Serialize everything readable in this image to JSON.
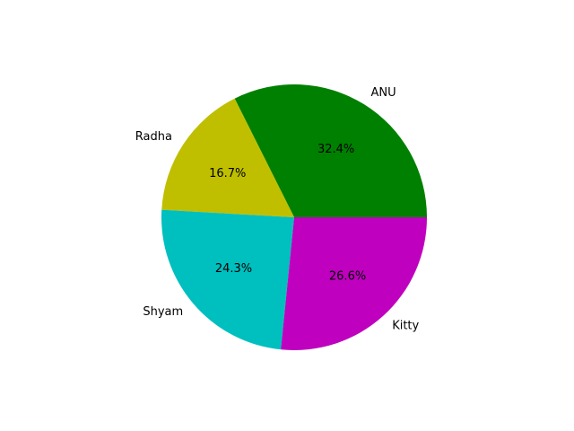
{
  "chart_data": {
    "type": "pie",
    "slices": [
      {
        "label": "ANU",
        "value": 32.4,
        "pct_text": "32.4%",
        "color": "#008000"
      },
      {
        "label": "Radha",
        "value": 16.7,
        "pct_text": "16.7%",
        "color": "#bfbf00"
      },
      {
        "label": "Shyam",
        "value": 24.3,
        "pct_text": "24.3%",
        "color": "#00bfbf"
      },
      {
        "label": "Kitty",
        "value": 26.6,
        "pct_text": "26.6%",
        "color": "#bf00bf"
      }
    ],
    "start_angle_deg": 0,
    "direction": "counterclockwise",
    "legend": "none"
  }
}
